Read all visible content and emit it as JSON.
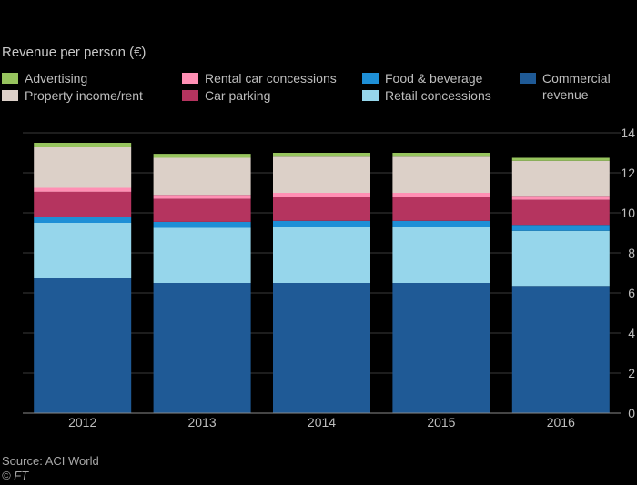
{
  "chart_data": {
    "type": "bar",
    "stacked": true,
    "title": "Revenue per person (€)",
    "categories": [
      "2012",
      "2013",
      "2014",
      "2015",
      "2016"
    ],
    "ylim": [
      0,
      14
    ],
    "yticks": [
      0,
      2,
      4,
      6,
      8,
      10,
      12,
      14
    ],
    "ytick_labels": [
      "0",
      "2",
      "4",
      "6",
      "8",
      "10",
      "12",
      "14"
    ],
    "grid": true,
    "legend_position": "top",
    "series": [
      {
        "name": "Commercial revenue",
        "color": "#1f5a96",
        "values": [
          6.75,
          6.5,
          6.5,
          6.5,
          6.35
        ]
      },
      {
        "name": "Retail concessions",
        "color": "#96d6eb",
        "values": [
          2.75,
          2.75,
          2.8,
          2.8,
          2.75
        ]
      },
      {
        "name": "Food & beverage",
        "color": "#1e8fd6",
        "values": [
          0.3,
          0.3,
          0.3,
          0.3,
          0.3
        ]
      },
      {
        "name": "Car parking",
        "color": "#b5345f",
        "values": [
          1.25,
          1.15,
          1.2,
          1.2,
          1.25
        ]
      },
      {
        "name": "Rental car concessions",
        "color": "#ff8fb4",
        "values": [
          0.2,
          0.2,
          0.2,
          0.2,
          0.2
        ]
      },
      {
        "name": "Property income/rent",
        "color": "#dcd0c8",
        "values": [
          2.05,
          1.85,
          1.85,
          1.85,
          1.75
        ]
      },
      {
        "name": "Advertising",
        "color": "#97c45e",
        "values": [
          0.2,
          0.2,
          0.15,
          0.15,
          0.15
        ]
      }
    ],
    "legend": [
      {
        "label": "Advertising",
        "color": "#97c45e"
      },
      {
        "label": "Property income/rent",
        "color": "#dcd0c8"
      },
      {
        "label": "Rental car concessions",
        "color": "#ff8fb4"
      },
      {
        "label": "Car parking",
        "color": "#b5345f"
      },
      {
        "label": "Food & beverage",
        "color": "#1e8fd6"
      },
      {
        "label": "Retail concessions",
        "color": "#96d6eb"
      },
      {
        "label": "Commercial\nrevenue",
        "color": "#1f5a96"
      }
    ],
    "source": "Source: ACI World",
    "credit": "© FT"
  }
}
